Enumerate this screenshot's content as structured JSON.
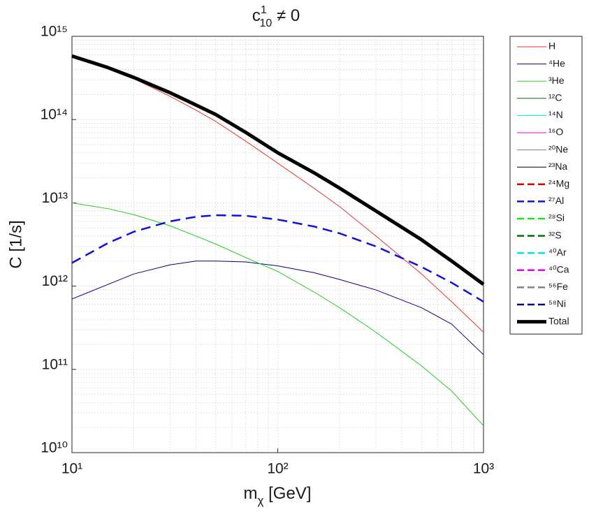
{
  "chart_data": {
    "type": "line",
    "title": {
      "base": "c",
      "sup": "1",
      "sub": "10",
      "rest": " ≠ 0"
    },
    "xlabel": {
      "base": "m",
      "sub": "χ",
      "rest": " [GeV]"
    },
    "ylabel": "C [1/s]",
    "xscale": "log",
    "yscale": "log",
    "xlim": [
      10,
      1000
    ],
    "ylim": [
      10000000000.0,
      1000000000000000.0
    ],
    "xticks": [
      {
        "value": 10,
        "label": "10¹"
      },
      {
        "value": 100,
        "label": "10²"
      },
      {
        "value": 1000,
        "label": "10³"
      }
    ],
    "yticks": [
      {
        "value": 10000000000.0,
        "label": "10¹⁰"
      },
      {
        "value": 100000000000.0,
        "label": "10¹¹"
      },
      {
        "value": 1000000000000.0,
        "label": "10¹²"
      },
      {
        "value": 10000000000000.0,
        "label": "10¹³"
      },
      {
        "value": 100000000000000.0,
        "label": "10¹⁴"
      },
      {
        "value": 1000000000000000.0,
        "label": "10¹⁵"
      }
    ],
    "grid": true,
    "minor_grid": true,
    "legend": "outside right",
    "x": [
      10,
      15,
      20,
      30,
      40,
      50,
      70,
      100,
      150,
      200,
      300,
      500,
      700,
      1000
    ],
    "series": [
      {
        "name": "H",
        "color": "#e8312f",
        "width": 1,
        "dash": false,
        "values": [
          580000000000000.0,
          410000000000000.0,
          310000000000000.0,
          190000000000000.0,
          130000000000000.0,
          95000000000000.0,
          55000000000000.0,
          30000000000000.0,
          15000000000000.0,
          9000000000000.0,
          4000000000000.0,
          1400000000000.0,
          650000000000.0,
          280000000000.0
        ]
      },
      {
        "name": "⁴He",
        "color": "#000080",
        "width": 1,
        "dash": false,
        "values": [
          700000000000.0,
          1050000000000.0,
          1400000000000.0,
          1800000000000.0,
          2000000000000.0,
          2000000000000.0,
          1950000000000.0,
          1750000000000.0,
          1450000000000.0,
          1200000000000.0,
          900000000000.0,
          550000000000.0,
          350000000000.0,
          150000000000.0
        ]
      },
      {
        "name": "³He",
        "color": "#22cc22",
        "width": 1,
        "dash": false,
        "values": [
          10000000000000.0,
          8500000000000.0,
          7200000000000.0,
          5300000000000.0,
          4000000000000.0,
          3200000000000.0,
          2200000000000.0,
          1500000000000.0,
          850000000000.0,
          550000000000.0,
          280000000000.0,
          110000000000.0,
          55000000000.0,
          21000000000.0
        ]
      },
      {
        "name": "¹²C",
        "color": "#007000",
        "width": 1,
        "dash": false,
        "values": [
          null,
          null,
          null,
          null,
          null,
          null,
          null,
          null,
          null,
          null,
          null,
          null,
          null,
          null
        ]
      },
      {
        "name": "¹⁴N",
        "color": "#00e5e5",
        "width": 1,
        "dash": false,
        "values": [
          null,
          null,
          null,
          null,
          null,
          null,
          null,
          null,
          null,
          null,
          null,
          null,
          null,
          null
        ]
      },
      {
        "name": "¹⁶O",
        "color": "#e500e5",
        "width": 1,
        "dash": false,
        "values": [
          null,
          null,
          null,
          null,
          null,
          null,
          null,
          null,
          null,
          null,
          null,
          null,
          null,
          null
        ]
      },
      {
        "name": "²⁰Ne",
        "color": "#808080",
        "width": 1,
        "dash": false,
        "values": [
          null,
          null,
          null,
          null,
          null,
          null,
          null,
          null,
          null,
          null,
          null,
          null,
          null,
          null
        ]
      },
      {
        "name": "²³Na",
        "color": "#000000",
        "width": 1,
        "dash": false,
        "values": [
          null,
          null,
          null,
          null,
          null,
          null,
          null,
          null,
          null,
          null,
          null,
          null,
          null,
          null
        ]
      },
      {
        "name": "²⁴Mg",
        "color": "#e00000",
        "width": 2.5,
        "dash": true,
        "values": [
          null,
          null,
          null,
          null,
          null,
          null,
          null,
          null,
          null,
          null,
          null,
          null,
          null,
          null
        ]
      },
      {
        "name": "²⁷Al",
        "color": "#1010e0",
        "width": 2.5,
        "dash": true,
        "values": [
          1900000000000.0,
          3300000000000.0,
          4500000000000.0,
          6000000000000.0,
          6800000000000.0,
          7100000000000.0,
          7000000000000.0,
          6300000000000.0,
          5200000000000.0,
          4300000000000.0,
          3000000000000.0,
          1700000000000.0,
          1100000000000.0,
          650000000000.0
        ]
      },
      {
        "name": "²⁸Si",
        "color": "#22dd22",
        "width": 2.5,
        "dash": true,
        "values": [
          null,
          null,
          null,
          null,
          null,
          null,
          null,
          null,
          null,
          null,
          null,
          null,
          null,
          null
        ]
      },
      {
        "name": "³²S",
        "color": "#007000",
        "width": 2.5,
        "dash": true,
        "values": [
          null,
          null,
          null,
          null,
          null,
          null,
          null,
          null,
          null,
          null,
          null,
          null,
          null,
          null
        ]
      },
      {
        "name": "⁴⁰Ar",
        "color": "#00e5e5",
        "width": 2.5,
        "dash": true,
        "values": [
          null,
          null,
          null,
          null,
          null,
          null,
          null,
          null,
          null,
          null,
          null,
          null,
          null,
          null
        ]
      },
      {
        "name": "⁴⁰Ca",
        "color": "#e500e5",
        "width": 2.5,
        "dash": true,
        "values": [
          null,
          null,
          null,
          null,
          null,
          null,
          null,
          null,
          null,
          null,
          null,
          null,
          null,
          null
        ]
      },
      {
        "name": "⁵⁶Fe",
        "color": "#808080",
        "width": 2.5,
        "dash": true,
        "values": [
          null,
          null,
          null,
          null,
          null,
          null,
          null,
          null,
          null,
          null,
          null,
          null,
          null,
          null
        ]
      },
      {
        "name": "⁵⁸Ni",
        "color": "#000080",
        "width": 2.5,
        "dash": true,
        "values": [
          null,
          null,
          null,
          null,
          null,
          null,
          null,
          null,
          null,
          null,
          null,
          null,
          null,
          null
        ]
      },
      {
        "name": "Total",
        "color": "#000000",
        "width": 5,
        "dash": false,
        "values": [
          580000000000000.0,
          420000000000000.0,
          320000000000000.0,
          210000000000000.0,
          150000000000000.0,
          115000000000000.0,
          70000000000000.0,
          40000000000000.0,
          23000000000000.0,
          15000000000000.0,
          8000000000000.0,
          3600000000000.0,
          2000000000000.0,
          1050000000000.0
        ]
      }
    ]
  }
}
